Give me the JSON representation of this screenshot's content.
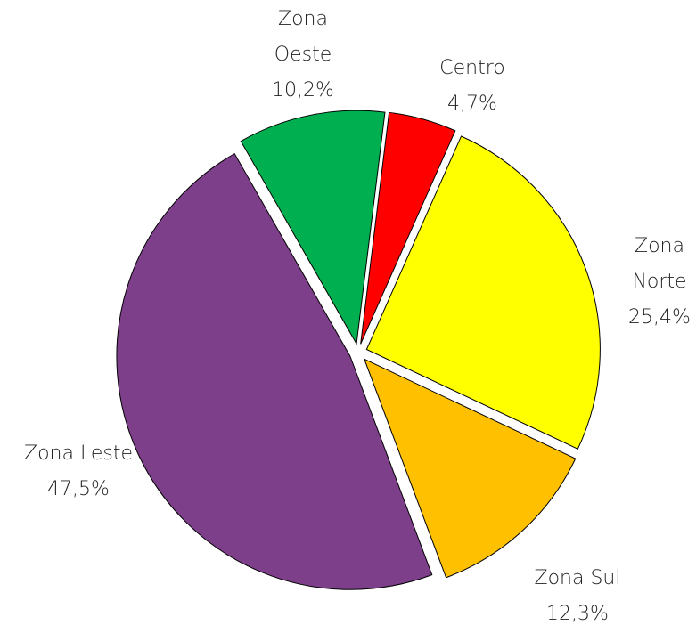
{
  "chart_data": {
    "type": "pie",
    "categories": [
      "Centro",
      "Zona Norte",
      "Zona Sul",
      "Zona Leste",
      "Zona Oeste"
    ],
    "values": [
      4.7,
      25.4,
      12.3,
      47.5,
      10.2
    ],
    "value_labels": [
      "4,7%",
      "25,4%",
      "12,3%",
      "47,5%",
      "10,2%"
    ],
    "colors": [
      "#ff0000",
      "#ffff00",
      "#ffc000",
      "#7e3f8a",
      "#00b050"
    ]
  }
}
